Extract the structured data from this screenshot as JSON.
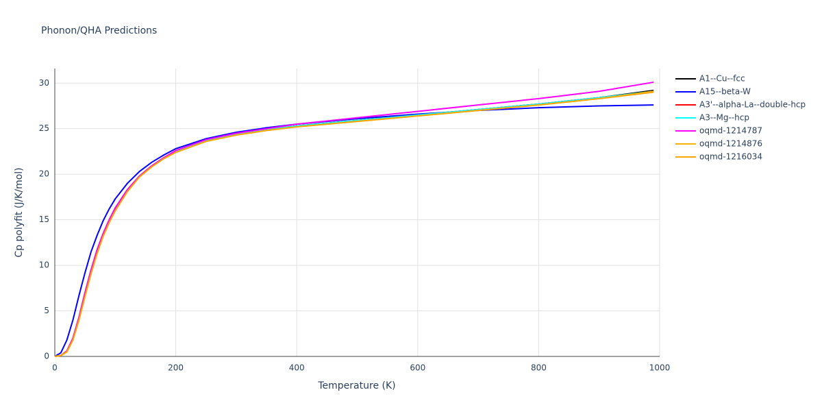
{
  "chart_data": {
    "type": "line",
    "title": "Phonon/QHA Predictions",
    "x_label": "Temperature (K)",
    "y_label": "Cp polyfit (J/K/mol)",
    "x": [
      0,
      10,
      20,
      30,
      40,
      50,
      60,
      70,
      80,
      90,
      100,
      120,
      140,
      160,
      180,
      200,
      250,
      300,
      350,
      400,
      500,
      600,
      700,
      800,
      900,
      990
    ],
    "series": [
      {
        "name": "A1--Cu--fcc",
        "color": "#000000",
        "values": [
          0,
          0.1,
          0.6,
          2.0,
          4.3,
          7.0,
          9.5,
          11.7,
          13.5,
          15.0,
          16.3,
          18.3,
          19.8,
          20.9,
          21.8,
          22.5,
          23.7,
          24.4,
          24.9,
          25.3,
          25.9,
          26.5,
          27.1,
          27.7,
          28.4,
          29.2
        ]
      },
      {
        "name": "A15--beta-W",
        "color": "#0000ff",
        "values": [
          0,
          0.4,
          1.8,
          4.0,
          6.7,
          9.2,
          11.5,
          13.3,
          14.9,
          16.2,
          17.3,
          19.0,
          20.3,
          21.3,
          22.1,
          22.8,
          23.9,
          24.6,
          25.1,
          25.5,
          26.1,
          26.6,
          27.0,
          27.3,
          27.5,
          27.6
        ]
      },
      {
        "name": "A3'--alpha-La--double-hcp",
        "color": "#ff0000",
        "values": [
          0,
          0.1,
          0.6,
          2.0,
          4.3,
          7.0,
          9.5,
          11.7,
          13.5,
          15.0,
          16.3,
          18.3,
          19.8,
          20.9,
          21.8,
          22.5,
          23.7,
          24.4,
          24.9,
          25.3,
          25.9,
          26.5,
          27.1,
          27.7,
          28.4,
          29.1
        ]
      },
      {
        "name": "A3--Mg--hcp",
        "color": "#00ffff",
        "values": [
          0,
          0.1,
          0.6,
          2.0,
          4.3,
          7.0,
          9.5,
          11.7,
          13.5,
          15.0,
          16.3,
          18.3,
          19.8,
          20.9,
          21.8,
          22.5,
          23.7,
          24.4,
          24.9,
          25.3,
          25.9,
          26.5,
          27.1,
          27.7,
          28.4,
          29.1
        ]
      },
      {
        "name": "oqmd-1214787",
        "color": "#ff00ff",
        "values": [
          0,
          0.1,
          0.6,
          2.0,
          4.3,
          7.0,
          9.5,
          11.7,
          13.5,
          15.0,
          16.3,
          18.3,
          19.8,
          20.9,
          21.8,
          22.6,
          23.8,
          24.5,
          25.0,
          25.5,
          26.2,
          26.9,
          27.6,
          28.3,
          29.1,
          30.1
        ]
      },
      {
        "name": "oqmd-1214876",
        "color": "#f5b400",
        "values": [
          0,
          0.1,
          0.5,
          1.8,
          4.0,
          6.6,
          9.1,
          11.3,
          13.2,
          14.7,
          16.0,
          18.1,
          19.7,
          20.8,
          21.7,
          22.4,
          23.6,
          24.3,
          24.8,
          25.2,
          25.8,
          26.4,
          27.0,
          27.6,
          28.3,
          29.1
        ]
      },
      {
        "name": "oqmd-1216034",
        "color": "#ffa500",
        "values": [
          0,
          0.1,
          0.5,
          1.8,
          4.0,
          6.6,
          9.1,
          11.3,
          13.2,
          14.7,
          16.0,
          18.1,
          19.7,
          20.8,
          21.7,
          22.4,
          23.6,
          24.3,
          24.8,
          25.2,
          25.8,
          26.4,
          27.0,
          27.6,
          28.3,
          29.0
        ]
      }
    ],
    "xlim": [
      0,
      1000
    ],
    "xticks": [
      0,
      200,
      400,
      600,
      800,
      1000
    ],
    "ylim": [
      0,
      31.6
    ],
    "yticks": [
      0,
      5,
      10,
      15,
      20,
      25,
      30
    ],
    "grid": true
  }
}
